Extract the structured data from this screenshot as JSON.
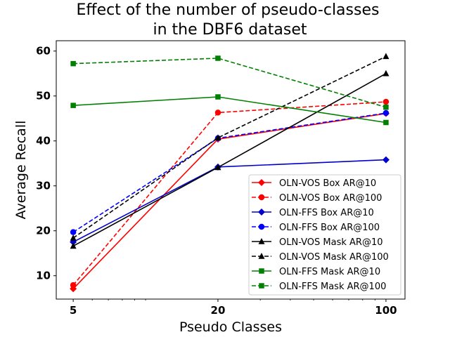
{
  "chart_data": {
    "type": "line",
    "title_lines": [
      "Effect of the number of pseudo-classes",
      "in the DBF6 dataset"
    ],
    "xlabel": "Pseudo Classes",
    "ylabel": "Average Recall",
    "x": [
      5,
      20,
      100
    ],
    "x_scale": "log",
    "xlim": [
      4.25,
      120
    ],
    "xtick_labels": [
      "5",
      "20",
      "100"
    ],
    "ylim": [
      4.8,
      62.3
    ],
    "yticks": [
      10,
      20,
      30,
      40,
      50,
      60
    ],
    "ytick_labels": [
      "10",
      "20",
      "30",
      "40",
      "50",
      "60"
    ],
    "legend_position": "lower-right",
    "series": [
      {
        "name": "OLN-VOS Box AR@10",
        "values": [
          7.1,
          40.4,
          46.1
        ],
        "color": "#ff0000",
        "dash": "solid",
        "marker": "diamond"
      },
      {
        "name": "OLN-VOS Box AR@100",
        "values": [
          7.9,
          46.3,
          48.7
        ],
        "color": "#ff0000",
        "dash": "dashed",
        "marker": "circle"
      },
      {
        "name": "OLN-FFS Box AR@10",
        "values": [
          17.5,
          34.2,
          35.8
        ],
        "color": "#0000cc",
        "dash": "solid",
        "marker": "diamond"
      },
      {
        "name": "OLN-FFS Box AR@100",
        "values": [
          19.7,
          40.6,
          46.2
        ],
        "color": "#0000ff",
        "dash": "dashed",
        "marker": "circle"
      },
      {
        "name": "OLN-VOS Mask AR@10",
        "values": [
          16.6,
          34.1,
          55.0
        ],
        "color": "#000000",
        "dash": "solid",
        "marker": "triangle"
      },
      {
        "name": "OLN-VOS Mask AR@100",
        "values": [
          18.4,
          40.7,
          58.8
        ],
        "color": "#000000",
        "dash": "dashed",
        "marker": "triangle"
      },
      {
        "name": "OLN-FFS Mask AR@10",
        "values": [
          47.9,
          49.8,
          44.1
        ],
        "color": "#008000",
        "dash": "solid",
        "marker": "square"
      },
      {
        "name": "OLN-FFS Mask AR@100",
        "values": [
          57.2,
          58.4,
          47.5
        ],
        "color": "#008000",
        "dash": "dashed",
        "marker": "square"
      }
    ]
  }
}
